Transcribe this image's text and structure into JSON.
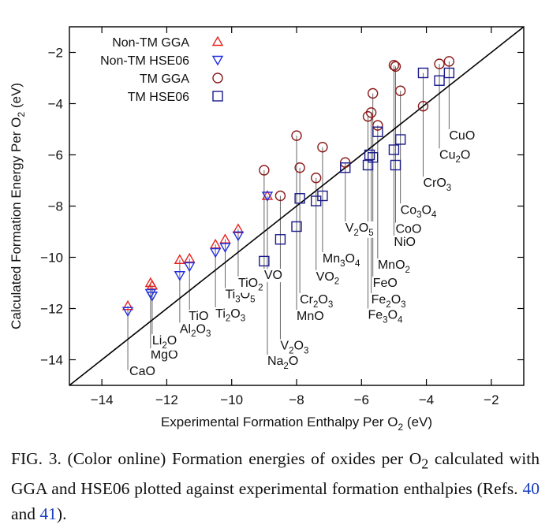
{
  "chart_data": {
    "type": "scatter",
    "xlabel": "Experimental Formation Enthalpy Per O₂ (eV)",
    "ylabel": "Calculated Formation Energy Per O₂ (eV)",
    "xlim": [
      -15,
      -1
    ],
    "ylim": [
      -15,
      -1
    ],
    "xticks": [
      -14,
      -12,
      -10,
      -8,
      -6,
      -4,
      -2
    ],
    "yticks": [
      -14,
      -12,
      -10,
      -8,
      -6,
      -4,
      -2
    ],
    "grid": false,
    "legend_position": "top-left",
    "diagonal": "y = x",
    "colors": {
      "non_tm": "#e8231f",
      "non_tm_hse": "#1f2fe0",
      "tm_gga": "#8b1a1a",
      "tm_hse": "#1a1a8b",
      "line": "#000000"
    },
    "series": [
      {
        "name": "Non-TM GGA",
        "marker": "triangle-up",
        "color": "#e8231f",
        "x": [
          -13.2,
          -12.5,
          -12.45,
          -11.6,
          -11.3,
          -10.5,
          -10.2,
          -9.8,
          -8.9
        ],
        "y": [
          -11.9,
          -11.0,
          -11.1,
          -10.1,
          -10.05,
          -9.5,
          -9.3,
          -8.9,
          -7.6
        ]
      },
      {
        "name": "Non-TM HSE06",
        "marker": "triangle-down",
        "color": "#1f2fe0",
        "x": [
          -13.2,
          -12.5,
          -12.45,
          -11.6,
          -11.3,
          -10.5,
          -10.2,
          -9.8,
          -8.9
        ],
        "y": [
          -12.1,
          -11.4,
          -11.5,
          -10.7,
          -10.35,
          -9.8,
          -9.6,
          -9.15,
          -7.6
        ]
      },
      {
        "name": "TM GGA",
        "marker": "circle",
        "color": "#8b1a1a",
        "x": [
          -9.0,
          -8.5,
          -8.0,
          -7.9,
          -7.4,
          -7.2,
          -6.5,
          -5.8,
          -5.7,
          -5.65,
          -5.5,
          -5.0,
          -4.95,
          -4.8,
          -4.1,
          -3.6,
          -3.3
        ],
        "y": [
          -6.6,
          -7.6,
          -5.25,
          -6.5,
          -6.9,
          -5.7,
          -6.3,
          -4.5,
          -4.35,
          -3.6,
          -4.85,
          -2.5,
          -2.55,
          -3.5,
          -4.1,
          -2.45,
          -2.35
        ]
      },
      {
        "name": "TM HSE06",
        "marker": "square",
        "color": "#1a1a8b",
        "x": [
          -9.0,
          -8.5,
          -8.0,
          -7.9,
          -7.4,
          -7.2,
          -6.5,
          -5.8,
          -5.75,
          -5.65,
          -5.5,
          -5.0,
          -4.95,
          -4.8,
          -4.1,
          -3.6,
          -3.3
        ],
        "y": [
          -10.15,
          -9.3,
          -8.8,
          -7.7,
          -7.8,
          -7.6,
          -6.5,
          -6.4,
          -6.0,
          -6.1,
          -5.1,
          -5.8,
          -6.4,
          -5.4,
          -2.8,
          -3.1,
          -2.8
        ]
      }
    ],
    "annotations": [
      {
        "label": "CaO",
        "x": -13.2,
        "y_from": -11.9,
        "y_to": -14.4,
        "text_y": -14.6,
        "dx": 2
      },
      {
        "label": "MgO",
        "x": -12.5,
        "y_from": -11.0,
        "y_to": -13.8,
        "text_y": -13.95,
        "dx": 0
      },
      {
        "label": "Li₂O",
        "x": -12.45,
        "y_from": -11.1,
        "y_to": -13.3,
        "text_y": -13.4,
        "dx": 0
      },
      {
        "label": "Al₂O₃",
        "x": -11.6,
        "y_from": -10.1,
        "y_to": -12.8,
        "text_y": -12.95,
        "dx": 0
      },
      {
        "label": "TiO",
        "x": -11.3,
        "y_from": -10.05,
        "y_to": -12.3,
        "text_y": -12.45,
        "dx": -1
      },
      {
        "label": "Ti₂O₃",
        "x": -10.5,
        "y_from": -9.5,
        "y_to": -12.0,
        "text_y": -12.35,
        "dx": 0
      },
      {
        "label": "Ti₃O₅",
        "x": -10.2,
        "y_from": -9.3,
        "y_to": -11.5,
        "text_y": -11.6,
        "dx": 0
      },
      {
        "label": "TiO₂",
        "x": -9.8,
        "y_from": -8.9,
        "y_to": -11.0,
        "text_y": -11.15,
        "dx": 0
      },
      {
        "label": "VO",
        "x": -9.0,
        "y_from": -6.6,
        "y_to": -10.7,
        "text_y": -10.85,
        "dx": 0
      },
      {
        "label": "Na₂O",
        "x": -8.9,
        "y_from": -7.6,
        "y_to": -14.1,
        "text_y": -14.2,
        "dx": 0
      },
      {
        "label": "V₂O₃",
        "x": -8.5,
        "y_from": -7.6,
        "y_to": -13.3,
        "text_y": -13.6,
        "dx": 0
      },
      {
        "label": "MnO",
        "x": -8.0,
        "y_from": -5.25,
        "y_to": -12.2,
        "text_y": -12.45,
        "dx": 0
      },
      {
        "label": "Cr₂O₃",
        "x": -7.9,
        "y_from": -6.5,
        "y_to": -11.5,
        "text_y": -11.8,
        "dx": 0
      },
      {
        "label": "VO₂",
        "x": -7.4,
        "y_from": -6.9,
        "y_to": -10.6,
        "text_y": -10.9,
        "dx": 0
      },
      {
        "label": "Mn₃O₄",
        "x": -7.2,
        "y_from": -5.7,
        "y_to": -10.0,
        "text_y": -10.2,
        "dx": 0
      },
      {
        "label": "V₂O₅",
        "x": -6.5,
        "y_from": -6.3,
        "y_to": -8.7,
        "text_y": -9.0,
        "dx": 0
      },
      {
        "label": "Fe₃O₄",
        "x": -5.8,
        "y_from": -4.5,
        "y_to": -12.1,
        "text_y": -12.4,
        "dx": 0
      },
      {
        "label": "Fe₂O₃",
        "x": -5.7,
        "y_from": -4.35,
        "y_to": -11.5,
        "text_y": -11.8,
        "dx": 0
      },
      {
        "label": "FeO",
        "x": -5.65,
        "y_from": -3.6,
        "y_to": -10.9,
        "text_y": -11.15,
        "dx": 0
      },
      {
        "label": "MnO₂",
        "x": -5.5,
        "y_from": -4.85,
        "y_to": -10.1,
        "text_y": -10.45,
        "dx": 0
      },
      {
        "label": "NiO",
        "x": -5.0,
        "y_from": -2.5,
        "y_to": -9.3,
        "text_y": -9.55,
        "dx": 0
      },
      {
        "label": "CoO",
        "x": -4.95,
        "y_from": -2.55,
        "y_to": -8.7,
        "text_y": -9.05,
        "dx": 0
      },
      {
        "label": "Co₃O₄",
        "x": -4.8,
        "y_from": -3.5,
        "y_to": -7.9,
        "text_y": -8.3,
        "dx": 0
      },
      {
        "label": "CrO₃",
        "x": -4.1,
        "y_from": -2.8,
        "y_to": -6.9,
        "text_y": -7.25,
        "dx": 0
      },
      {
        "label": "Cu₂O",
        "x": -3.6,
        "y_from": -2.45,
        "y_to": -5.8,
        "text_y": -6.15,
        "dx": 0
      },
      {
        "label": "CuO",
        "x": -3.3,
        "y_from": -2.35,
        "y_to": -5.0,
        "text_y": -5.4,
        "dx": 0
      }
    ]
  },
  "caption": {
    "prefix": "FIG. 3. (Color online) Formation energies of oxides per O",
    "sub": "2",
    "middle": " calculated with GGA and HSE06 plotted against experimental formation enthalpies (Refs. ",
    "ref1": "40",
    "and": " and ",
    "ref2": "41",
    "suffix": ")."
  }
}
